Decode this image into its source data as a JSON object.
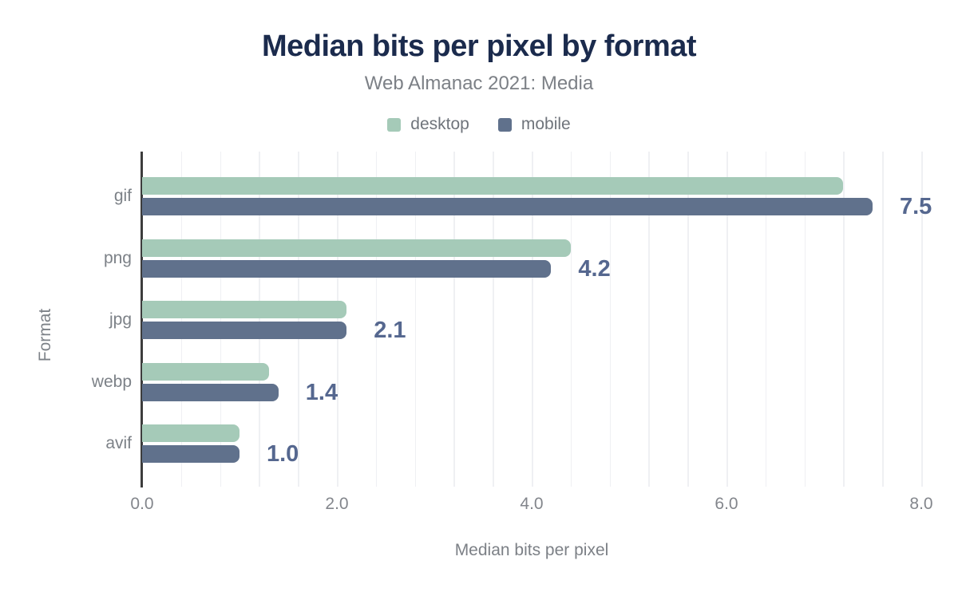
{
  "chart_data": {
    "type": "bar",
    "orientation": "horizontal",
    "title": "Median bits per pixel by format",
    "subtitle": "Web Almanac 2021: Media",
    "xlabel": "Median bits per pixel",
    "ylabel": "Format",
    "categories": [
      "gif",
      "png",
      "jpg",
      "webp",
      "avif"
    ],
    "series": [
      {
        "name": "desktop",
        "color": "#a5cab8",
        "values": [
          7.2,
          4.4,
          2.1,
          1.3,
          1.0
        ]
      },
      {
        "name": "mobile",
        "color": "#60718c",
        "values": [
          7.5,
          4.2,
          2.1,
          1.4,
          1.0
        ]
      }
    ],
    "value_labels": [
      "7.5",
      "4.2",
      "2.1",
      "1.4",
      "1.0"
    ],
    "xlim": [
      0,
      8
    ],
    "xticks": [
      "0.0",
      "2.0",
      "4.0",
      "6.0",
      "8.0"
    ],
    "xtick_values": [
      0,
      2,
      4,
      6,
      8
    ],
    "grid_step": 0.4,
    "grid": true,
    "legend_position": "top",
    "colors": {
      "title": "#1b2b4d",
      "subtitle_text": "#7c8086",
      "desktop_bar": "#a5cab8",
      "mobile_bar": "#60718c",
      "value_label_text": "#55678f",
      "axis_line": "#3d3d3d",
      "gridline": "#eff0f3",
      "tick_text": "#83868c"
    }
  }
}
